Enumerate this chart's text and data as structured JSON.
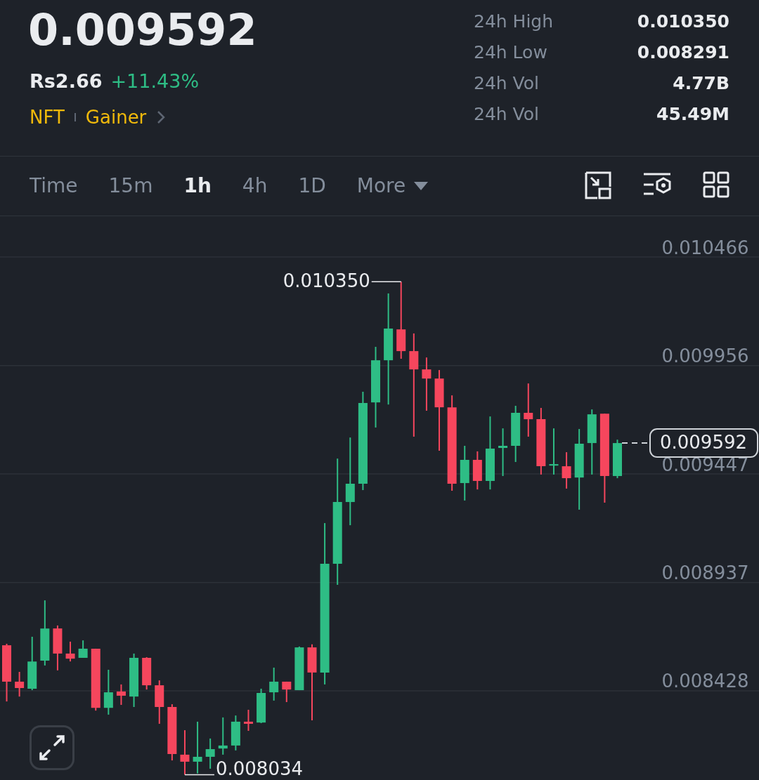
{
  "chart_data": {
    "type": "candlestick",
    "title": "0.009592",
    "categories": [
      null,
      null,
      null,
      null,
      null,
      null,
      null,
      null,
      null,
      null,
      null,
      null,
      null,
      null,
      null,
      null,
      null,
      null,
      null,
      null,
      null,
      null,
      null,
      null,
      null,
      null,
      null,
      null,
      null,
      null,
      null,
      null,
      null,
      null,
      null,
      null,
      null,
      null,
      null,
      null,
      null,
      null,
      null,
      null,
      null,
      null,
      null,
      null,
      null
    ],
    "ohlc": [
      [
        0.008642,
        0.008649,
        0.008378,
        0.008471
      ],
      [
        0.008471,
        0.008517,
        0.008401,
        0.008441
      ],
      [
        0.008438,
        0.008682,
        0.008431,
        0.008566
      ],
      [
        0.00857,
        0.008853,
        0.008547,
        0.008721
      ],
      [
        0.008721,
        0.008735,
        0.008524,
        0.008603
      ],
      [
        0.008603,
        0.008659,
        0.008566,
        0.008579
      ],
      [
        0.008583,
        0.008665,
        0.008583,
        0.008626
      ],
      [
        0.008626,
        0.008626,
        0.008335,
        0.008348
      ],
      [
        0.008348,
        0.008527,
        0.008316,
        0.008421
      ],
      [
        0.008425,
        0.008458,
        0.008362,
        0.008405
      ],
      [
        0.008401,
        0.008603,
        0.008352,
        0.008583
      ],
      [
        0.008583,
        0.008586,
        0.008434,
        0.008454
      ],
      [
        0.008454,
        0.008477,
        0.008273,
        0.008352
      ],
      [
        0.008352,
        0.008365,
        0.008101,
        0.008131
      ],
      [
        0.008128,
        0.008243,
        0.008034,
        0.008095
      ],
      [
        0.008095,
        0.008283,
        0.00804,
        0.008118
      ],
      [
        0.008118,
        0.008204,
        0.008062,
        0.008154
      ],
      [
        0.008157,
        0.008303,
        0.008128,
        0.008171
      ],
      [
        0.008171,
        0.008312,
        0.008148,
        0.008283
      ],
      [
        0.008283,
        0.008339,
        0.00824,
        0.008273
      ],
      [
        0.008279,
        0.008438,
        0.008276,
        0.008418
      ],
      [
        0.008421,
        0.008537,
        0.008382,
        0.008471
      ],
      [
        0.008471,
        0.008471,
        0.008375,
        0.008434
      ],
      [
        0.008431,
        0.008636,
        0.008431,
        0.008632
      ],
      [
        0.008632,
        0.008646,
        0.008289,
        0.008514
      ],
      [
        0.008514,
        0.009216,
        0.008458,
        0.009025
      ],
      [
        0.009025,
        0.009519,
        0.008926,
        0.009315
      ],
      [
        0.009315,
        0.009618,
        0.009206,
        0.009401
      ],
      [
        0.009401,
        0.009833,
        0.009371,
        0.00978
      ],
      [
        0.009783,
        0.010044,
        0.009665,
        0.009981
      ],
      [
        0.009981,
        0.010295,
        0.009773,
        0.01013
      ],
      [
        0.010126,
        0.01035,
        0.009988,
        0.010024
      ],
      [
        0.010024,
        0.010107,
        0.009622,
        0.009938
      ],
      [
        0.009938,
        0.009994,
        0.009744,
        0.009895
      ],
      [
        0.009895,
        0.009935,
        0.009556,
        0.00976
      ],
      [
        0.00976,
        0.009816,
        0.009368,
        0.009401
      ],
      [
        0.009404,
        0.009579,
        0.009322,
        0.009513
      ],
      [
        0.009513,
        0.009553,
        0.009374,
        0.009414
      ],
      [
        0.009414,
        0.009717,
        0.009374,
        0.009566
      ],
      [
        0.009569,
        0.009661,
        0.009437,
        0.009579
      ],
      [
        0.009579,
        0.009767,
        0.009503,
        0.009734
      ],
      [
        0.009734,
        0.009872,
        0.009622,
        0.009704
      ],
      [
        0.009704,
        0.009757,
        0.009444,
        0.009483
      ],
      [
        0.009486,
        0.009661,
        0.009444,
        0.009493
      ],
      [
        0.009483,
        0.009549,
        0.009378,
        0.009427
      ],
      [
        0.00943,
        0.009658,
        0.009279,
        0.009589
      ],
      [
        0.009592,
        0.00975,
        0.009444,
        0.009727
      ],
      [
        0.00973,
        0.00973,
        0.009312,
        0.009437
      ],
      [
        0.009437,
        0.009608,
        0.009427,
        0.009592
      ]
    ],
    "colors": [
      "#f6465d",
      "#f6465d",
      "#2ebd85",
      "#2ebd85",
      "#f6465d",
      "#f6465d",
      "#2ebd85",
      "#f6465d",
      "#2ebd85",
      "#f6465d",
      "#2ebd85",
      "#f6465d",
      "#f6465d",
      "#f6465d",
      "#f6465d",
      "#2ebd85",
      "#2ebd85",
      "#2ebd85",
      "#2ebd85",
      "#f6465d",
      "#2ebd85",
      "#2ebd85",
      "#f6465d",
      "#2ebd85",
      "#f6465d",
      "#2ebd85",
      "#2ebd85",
      "#2ebd85",
      "#2ebd85",
      "#2ebd85",
      "#2ebd85",
      "#f6465d",
      "#f6465d",
      "#f6465d",
      "#f6465d",
      "#f6465d",
      "#2ebd85",
      "#f6465d",
      "#2ebd85",
      "#2ebd85",
      "#2ebd85",
      "#f6465d",
      "#f6465d",
      "#2ebd85",
      "#f6465d",
      "#2ebd85",
      "#2ebd85",
      "#f6465d",
      "#2ebd85"
    ],
    "ylim": [
      0.008009,
      0.010651
    ],
    "yticks": [
      0.010466,
      0.009956,
      0.009447,
      0.008937,
      0.008428
    ],
    "grid": "y",
    "tick_labels": "y",
    "ref_lines": [
      {
        "axis": "y",
        "value": 0.009592,
        "label": "0.009592",
        "line_style": "dashed"
      }
    ],
    "annotations": [
      "Rs2.66",
      "+11.43%",
      "NFT",
      "Gainer",
      "24h High",
      "0.010350",
      "24h Low",
      "0.008291",
      "24h Vol",
      "4.77B",
      "24h Vol",
      "45.49M",
      "Time",
      "15m",
      "1h",
      "4h",
      "1D",
      "More",
      "0.010350",
      "0.008034"
    ]
  }
}
